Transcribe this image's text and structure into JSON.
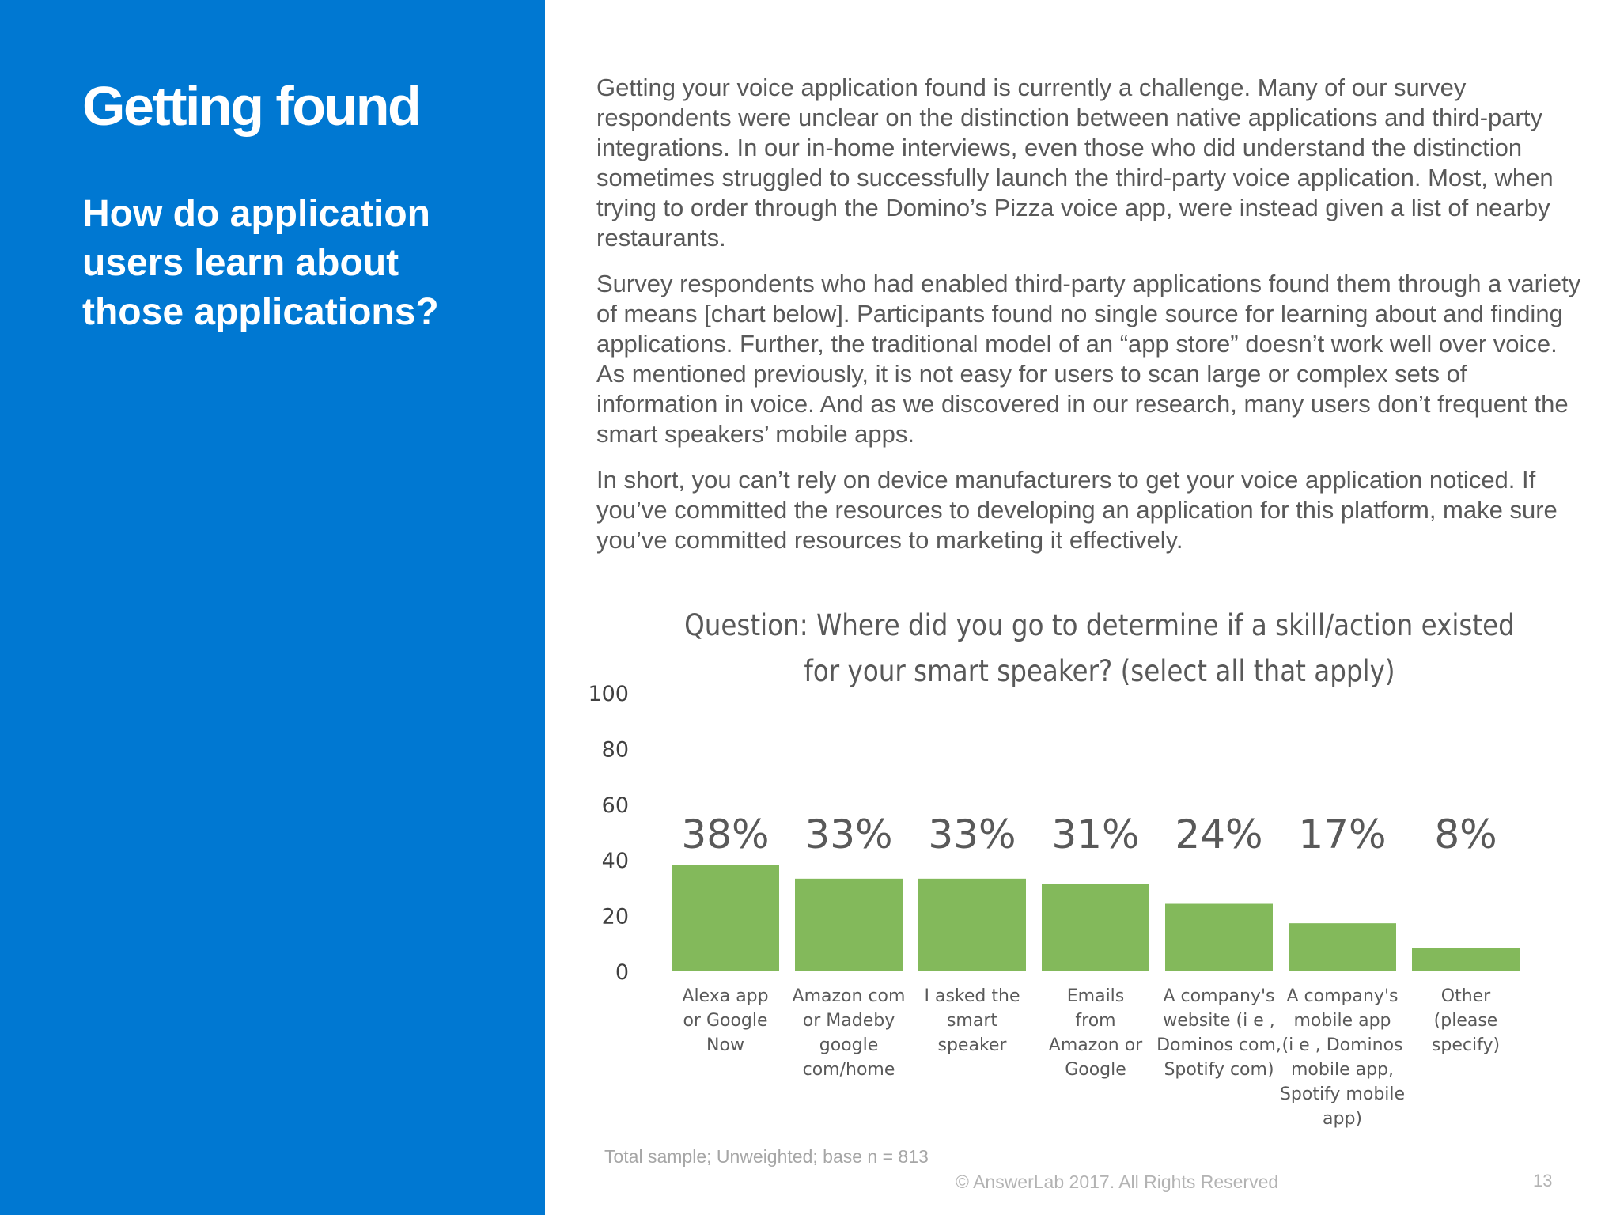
{
  "sidebar": {
    "title": "Getting found",
    "subtitle": "How do application users learn about those applications?"
  },
  "body": {
    "paragraphs": [
      "Getting your voice application found is currently a challenge. Many of our survey respondents were unclear on the distinction between native applications and third-party integrations. In our in-home interviews, even those who did understand the distinction sometimes struggled to successfully launch the third-party voice application. Most, when trying to order through the Domino’s Pizza voice app, were instead given a list of nearby restaurants.",
      "Survey respondents who had enabled third-party applications found them through a variety of means [chart below]. Participants found no single source for learning about and finding applications. Further, the traditional model of an “app store” doesn’t work well over voice. As mentioned previously, it is not easy for users to scan large or complex sets of information in voice. And as we discovered in our research, many users don’t frequent the smart speakers’ mobile apps.",
      "In short, you can’t rely on device manufacturers to get your voice application noticed. If you’ve committed the resources to developing an application for this platform, make sure you’ve committed resources to marketing it effectively."
    ]
  },
  "chart_data": {
    "type": "bar",
    "title": "Question: Where did you go to determine if a skill/action existed for your smart speaker? (select all that apply)",
    "categories": [
      [
        "Alexa app",
        "or Google",
        "Now"
      ],
      [
        "Amazon com",
        "or Madeby",
        "google",
        "com/home"
      ],
      [
        "I asked the",
        "smart",
        "speaker"
      ],
      [
        "Emails",
        "from",
        "Amazon or",
        "Google"
      ],
      [
        "A company's",
        "website (i e ,",
        "Dominos com,",
        "Spotify com)"
      ],
      [
        "A company's",
        "mobile app",
        "(i e , Dominos",
        "mobile app,",
        "Spotify mobile",
        "app)"
      ],
      [
        "Other",
        "(please",
        "specify)"
      ]
    ],
    "values": [
      38,
      33,
      33,
      31,
      24,
      17,
      8
    ],
    "data_labels": [
      "38%",
      "33%",
      "33%",
      "31%",
      "24%",
      "17%",
      "8%"
    ],
    "yticks": [
      "0",
      "20",
      "40",
      "60",
      "80",
      "100"
    ],
    "ylim": [
      0,
      100
    ],
    "bar_color": "#83b95b",
    "grid": false,
    "legend": "none"
  },
  "notes": {
    "sample": "Total sample; Unweighted; base n = 813",
    "copyright": "© AnswerLab 2017. All Rights Reserved",
    "page_number": "13"
  }
}
